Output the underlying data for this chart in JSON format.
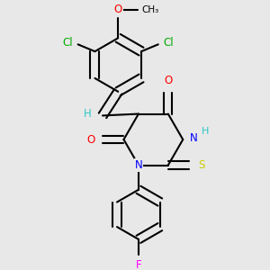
{
  "bg_color": "#e8e8e8",
  "atom_colors": {
    "C": "#000000",
    "H": "#2ec5c5",
    "N": "#0000ff",
    "O": "#ff0000",
    "S": "#cccc00",
    "Cl": "#00aa00",
    "F": "#ff00ff"
  }
}
